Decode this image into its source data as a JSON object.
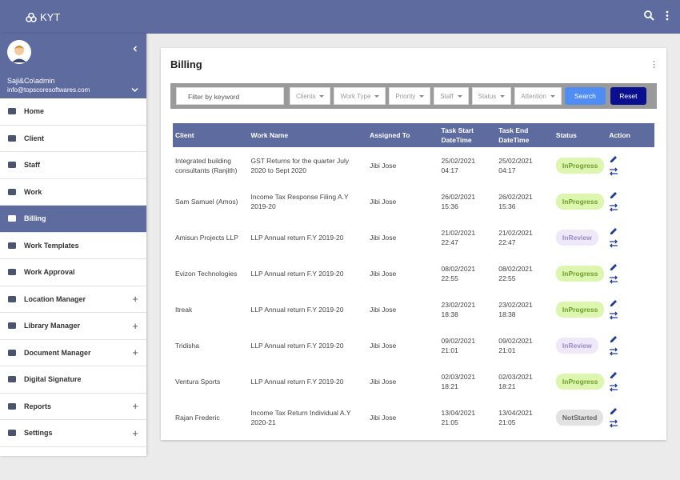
{
  "header": {
    "brand": "KYT"
  },
  "sidebar": {
    "user": "Saji&Co\\admin",
    "email": "info@topscoresoftwares.com",
    "menu": [
      {
        "label": "Home",
        "has_submenu": false,
        "active": false
      },
      {
        "label": "Client",
        "has_submenu": false,
        "active": false
      },
      {
        "label": "Staff",
        "has_submenu": false,
        "active": false
      },
      {
        "label": "Work",
        "has_submenu": false,
        "active": false
      },
      {
        "label": "Billing",
        "has_submenu": false,
        "active": true
      },
      {
        "label": "Work Templates",
        "has_submenu": false,
        "active": false
      },
      {
        "label": "Work Approval",
        "has_submenu": false,
        "active": false
      },
      {
        "label": "Location Manager",
        "has_submenu": true,
        "active": false
      },
      {
        "label": "Library Manager",
        "has_submenu": true,
        "active": false
      },
      {
        "label": "Document Manager",
        "has_submenu": true,
        "active": false
      },
      {
        "label": "Digital Signature",
        "has_submenu": false,
        "active": false
      },
      {
        "label": "Reports",
        "has_submenu": true,
        "active": false
      },
      {
        "label": "Settings",
        "has_submenu": true,
        "active": false
      }
    ]
  },
  "content": {
    "title": "Billing",
    "filters": {
      "keyword_placeholder": "Filter by keyword",
      "dropdowns": [
        "Clients",
        "Work Type",
        "Priority",
        "Staff",
        "Status",
        "Attention"
      ],
      "search": "Search",
      "reset": "Reset"
    },
    "table": {
      "columns": [
        "Client",
        "Work Name",
        "Assigned To",
        "Task Start DateTime",
        "Task End DateTime",
        "Status",
        "Action"
      ],
      "rows": [
        {
          "client": "Integrated building consultants (Ranjith)",
          "work": "GST Returns for the quarter July 2020 to Sept 2020",
          "assigned": "Jibi Jose",
          "start": "25/02/2021 04:17",
          "end": "25/02/2021 04:17",
          "status": {
            "text": "InProgress",
            "color": "#6f9c2c",
            "background": "#dcf6b0"
          }
        },
        {
          "client": "Sam Samuel (Amos)",
          "work": "Income Tax Response Filing A.Y 2019-20",
          "assigned": "Jibi Jose",
          "start": "26/02/2021 15:36",
          "end": "26/02/2021 15:36",
          "status": {
            "text": "InProgress",
            "color": "#6f9c2c",
            "background": "#dcf6b0"
          }
        },
        {
          "client": "Amisun Projects LLP",
          "work": "LLP Annual return F.Y 2019-20",
          "assigned": "Jibi Jose",
          "start": "21/02/2021 22:47",
          "end": "21/02/2021 22:47",
          "status": {
            "text": "InReview",
            "color": "#9b8bc9",
            "background": "#eee8f8"
          }
        },
        {
          "client": "Evizon Technologies",
          "work": "LLP Annual return F.Y 2019-20",
          "assigned": "Jibi Jose",
          "start": "08/02/2021 22:55",
          "end": "08/02/2021 22:55",
          "status": {
            "text": "InProgress",
            "color": "#6f9c2c",
            "background": "#dcf6b0"
          }
        },
        {
          "client": "Itreak",
          "work": "LLP Annual return F.Y 2019-20",
          "assigned": "Jibi Jose",
          "start": "23/02/2021 18:38",
          "end": "23/02/2021 18:38",
          "status": {
            "text": "InProgress",
            "color": "#6f9c2c",
            "background": "#dcf6b0"
          }
        },
        {
          "client": "Tridisha",
          "work": "LLP Annual return F.Y 2019-20",
          "assigned": "Jibi Jose",
          "start": "09/02/2021 21:01",
          "end": "09/02/2021 21:01",
          "status": {
            "text": "InReview",
            "color": "#9b8bc9",
            "background": "#eee8f8"
          }
        },
        {
          "client": "Ventura Sports",
          "work": "LLP Annual return F.Y 2019-20",
          "assigned": "Jibi Jose",
          "start": "02/03/2021 18:21",
          "end": "02/03/2021 18:21",
          "status": {
            "text": "InProgress",
            "color": "#6f9c2c",
            "background": "#dcf6b0"
          }
        },
        {
          "client": "Rajan Frederic",
          "work": "Income Tax Return Individual A.Y 2020-21",
          "assigned": "Jibi Jose",
          "start": "13/04/2021 21:05",
          "end": "13/04/2021 21:05",
          "status": {
            "text": "NotStarted",
            "color": "#666666",
            "background": "#e2e2e2"
          }
        }
      ]
    }
  }
}
